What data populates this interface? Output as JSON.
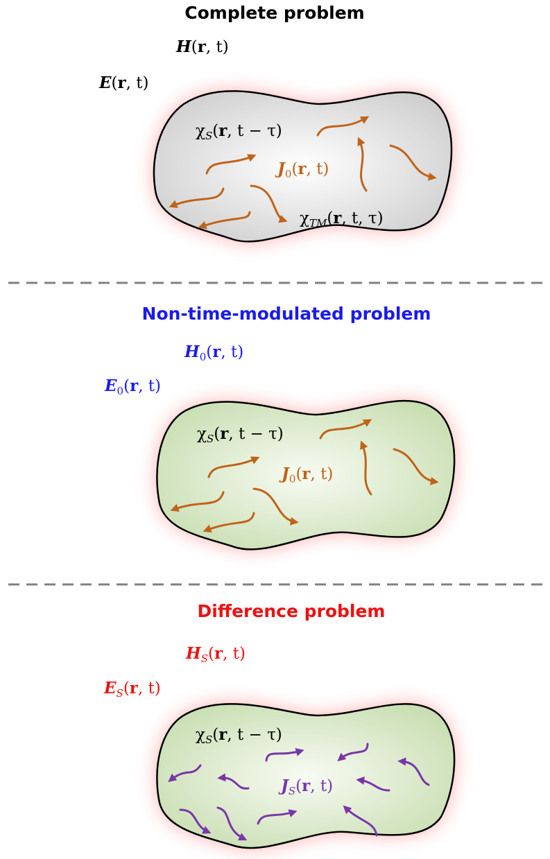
{
  "panels": [
    {
      "id": "complete",
      "title": "Complete problem",
      "title_color": "#000000",
      "fill": "gray",
      "magnetic_field": {
        "sym": "H",
        "sub": "",
        "args": "(r, t)",
        "color": "#000000"
      },
      "electric_field": {
        "sym": "E",
        "sub": "",
        "args": "(r, t)",
        "color": "#000000"
      },
      "susceptibility": {
        "sym": "χ",
        "sub": "S",
        "args": "(r, t − τ)",
        "color": "#000000"
      },
      "current": {
        "sym": "J",
        "sub": "0",
        "args": "(r, t)",
        "color": "#c0631a"
      },
      "time_modulation": {
        "sym": "χ",
        "sub": "TM",
        "args": "(r, t, τ)",
        "color": "#000000"
      },
      "arrow_color": "#c0631a"
    },
    {
      "id": "non-time-modulated",
      "title": "Non-time-modulated problem",
      "title_color": "#1a1aee",
      "fill": "green",
      "magnetic_field": {
        "sym": "H",
        "sub": "0",
        "args": "(r, t)",
        "color": "#1a1aee"
      },
      "electric_field": {
        "sym": "E",
        "sub": "0",
        "args": "(r, t)",
        "color": "#1a1aee"
      },
      "susceptibility": {
        "sym": "χ",
        "sub": "S",
        "args": "(r, t − τ)",
        "color": "#000000"
      },
      "current": {
        "sym": "J",
        "sub": "0",
        "args": "(r, t)",
        "color": "#c0631a"
      },
      "arrow_color": "#c0631a"
    },
    {
      "id": "difference",
      "title": "Difference problem",
      "title_color": "#ee1111",
      "fill": "green",
      "magnetic_field": {
        "sym": "H",
        "sub": "S",
        "args": "(r, t)",
        "color": "#ee1111"
      },
      "electric_field": {
        "sym": "E",
        "sub": "S",
        "args": "(r, t)",
        "color": "#ee1111"
      },
      "susceptibility": {
        "sym": "χ",
        "sub": "S",
        "args": "(r, t − τ)",
        "color": "#000000"
      },
      "current": {
        "sym": "J",
        "sub": "S",
        "args": "(r, t)",
        "color": "#7a36a8"
      },
      "arrow_color": "#7a36a8"
    }
  ],
  "divider_color": "#808080"
}
